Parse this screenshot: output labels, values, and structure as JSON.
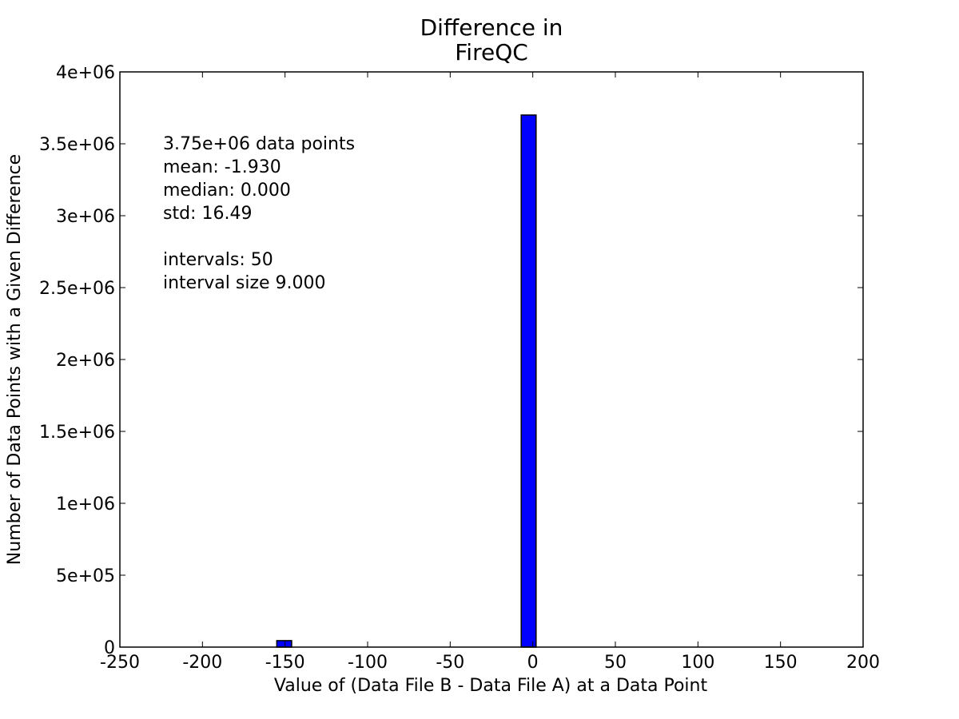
{
  "chart_data": {
    "type": "bar",
    "title_lines": [
      "Difference in",
      "FireQC"
    ],
    "xlabel": "Value of (Data File B - Data File A) at a Data Point",
    "ylabel": "Number of Data Points with a Given Difference",
    "xlim": [
      -250,
      200
    ],
    "ylim": [
      0,
      4000000
    ],
    "xticks": [
      -250,
      -200,
      -150,
      -100,
      -50,
      0,
      50,
      100,
      150,
      200
    ],
    "xtick_labels": [
      "-250",
      "-200",
      "-150",
      "-100",
      "-50",
      "0",
      "50",
      "100",
      "150",
      "200"
    ],
    "yticks": [
      0,
      500000,
      1000000,
      1500000,
      2000000,
      2500000,
      3000000,
      3500000,
      4000000
    ],
    "ytick_labels": [
      "0",
      "5e+05",
      "1e+06",
      "1.5e+06",
      "2e+06",
      "2.5e+06",
      "3e+06",
      "3.5e+06",
      "4e+06"
    ],
    "bars": [
      {
        "x_start": -155,
        "x_end": -146,
        "value": 45000
      },
      {
        "x_start": -7,
        "x_end": 2,
        "value": 3700000
      }
    ],
    "bar_color": "#0000ff",
    "grid": false,
    "annotation_lines": [
      "3.75e+06 data points",
      "mean: -1.930",
      "median: 0.000",
      "std: 16.49",
      "",
      "intervals: 50",
      "interval size 9.000"
    ]
  }
}
